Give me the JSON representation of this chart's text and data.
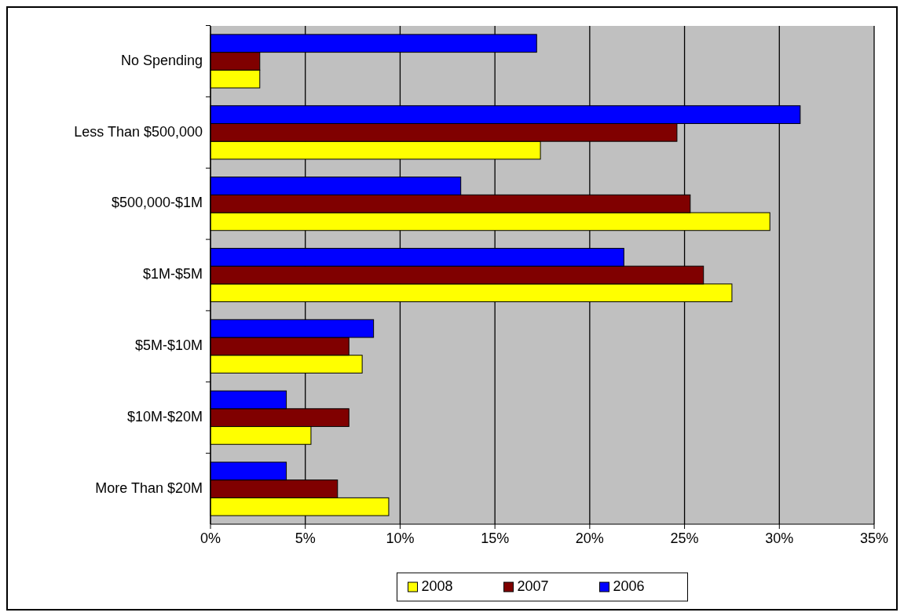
{
  "chart_data": {
    "type": "bar",
    "orientation": "horizontal",
    "categories": [
      "No Spending",
      "Less Than $500,000",
      "$500,000-$1M",
      "$1M-$5M",
      "$5M-$10M",
      "$10M-$20M",
      "More Than $20M"
    ],
    "series": [
      {
        "name": "2008",
        "color": "#ffff00",
        "values": [
          2.6,
          17.4,
          29.5,
          27.5,
          8.0,
          5.3,
          9.4
        ]
      },
      {
        "name": "2007",
        "color": "#800000",
        "values": [
          2.6,
          24.6,
          25.3,
          26.0,
          7.3,
          7.3,
          6.7
        ]
      },
      {
        "name": "2006",
        "color": "#0000ff",
        "values": [
          17.2,
          31.1,
          13.2,
          21.8,
          8.6,
          4.0,
          4.0
        ]
      }
    ],
    "xlim": [
      0,
      35
    ],
    "xticks": [
      {
        "value": 0,
        "label": "0%"
      },
      {
        "value": 5,
        "label": "5%"
      },
      {
        "value": 10,
        "label": "10%"
      },
      {
        "value": 15,
        "label": "15%"
      },
      {
        "value": 20,
        "label": "20%"
      },
      {
        "value": 25,
        "label": "25%"
      },
      {
        "value": 30,
        "label": "30%"
      },
      {
        "value": 35,
        "label": "35%"
      }
    ],
    "grid": "x",
    "legend": "bottom"
  }
}
